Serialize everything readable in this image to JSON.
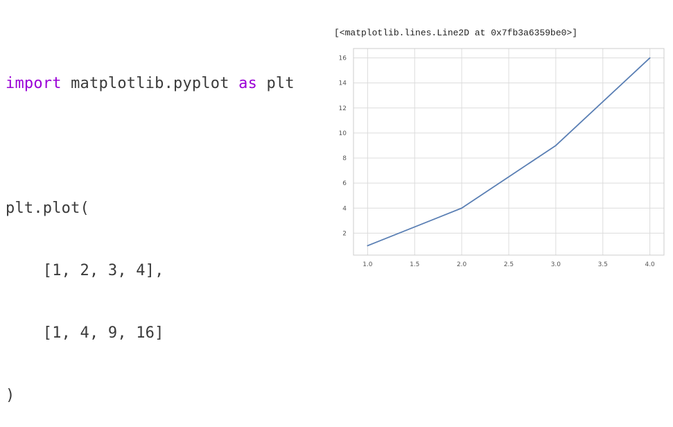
{
  "code": {
    "line1": {
      "kw1": "import",
      "rest": " matplotlib.pyplot ",
      "kw2": "as",
      "end": " plt"
    },
    "line2": "",
    "line3": "plt.plot(",
    "line4": "    [1, 2, 3, 4],",
    "line5": "    [1, 4, 9, 16]",
    "line6": ")"
  },
  "output": {
    "header": "[<matplotlib.lines.Line2D at 0x7fb3a6359be0>]"
  },
  "chart_data": {
    "type": "line",
    "x": [
      1,
      2,
      3,
      4
    ],
    "y": [
      1,
      4,
      9,
      16
    ],
    "xlim": [
      0.85,
      4.15
    ],
    "ylim": [
      0.25,
      16.75
    ],
    "xticks": [
      1.0,
      1.5,
      2.0,
      2.5,
      3.0,
      3.5,
      4.0
    ],
    "xtick_labels": [
      "1.0",
      "1.5",
      "2.0",
      "2.5",
      "3.0",
      "3.5",
      "4.0"
    ],
    "yticks": [
      2,
      4,
      6,
      8,
      10,
      12,
      14,
      16
    ],
    "ytick_labels": [
      "2",
      "4",
      "6",
      "8",
      "10",
      "12",
      "14",
      "16"
    ],
    "grid": true,
    "line_color": "#5a7fb4",
    "grid_color": "#dcdcdc",
    "axes_edge_color": "#cccccc"
  }
}
